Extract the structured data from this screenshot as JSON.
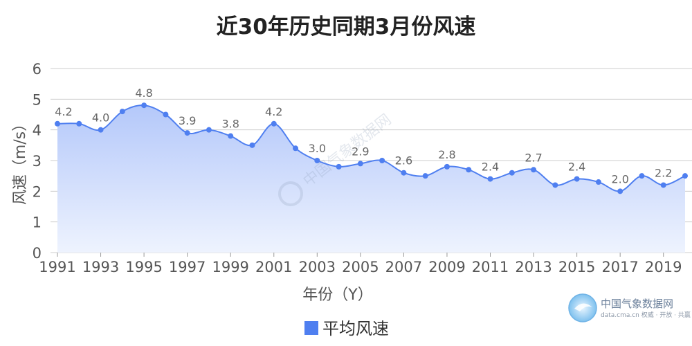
{
  "chart_data": {
    "type": "area",
    "title": "近30年历史同期3月份风速",
    "xlabel": "年份（Y）",
    "ylabel": "风速（m/s）",
    "ylim": [
      0,
      6
    ],
    "yticks": [
      0,
      1,
      2,
      3,
      4,
      5,
      6
    ],
    "xtick_labels": [
      "1991",
      "1993",
      "1995",
      "1997",
      "1999",
      "2001",
      "2003",
      "2005",
      "2007",
      "2009",
      "2011",
      "2013",
      "2015",
      "2017",
      "2019"
    ],
    "x": [
      1991,
      1992,
      1993,
      1994,
      1995,
      1996,
      1997,
      1998,
      1999,
      2000,
      2001,
      2002,
      2003,
      2004,
      2005,
      2006,
      2007,
      2008,
      2009,
      2010,
      2011,
      2012,
      2013,
      2014,
      2015,
      2016,
      2017,
      2018,
      2019,
      2020
    ],
    "series": [
      {
        "name": "平均风速",
        "color": "#4f7ff0",
        "values": [
          4.2,
          4.2,
          4.0,
          4.6,
          4.8,
          4.5,
          3.9,
          4.0,
          3.8,
          3.5,
          4.2,
          3.4,
          3.0,
          2.8,
          2.9,
          3.0,
          2.6,
          2.5,
          2.8,
          2.7,
          2.4,
          2.6,
          2.7,
          2.2,
          2.4,
          2.3,
          2.0,
          2.5,
          2.2,
          2.5
        ]
      }
    ],
    "data_labels": [
      {
        "x": 1991,
        "text": "4.2"
      },
      {
        "x": 1993,
        "text": "4.0"
      },
      {
        "x": 1995,
        "text": "4.8"
      },
      {
        "x": 1997,
        "text": "3.9"
      },
      {
        "x": 1999,
        "text": "3.8"
      },
      {
        "x": 2001,
        "text": "4.2"
      },
      {
        "x": 2003,
        "text": "3.0"
      },
      {
        "x": 2005,
        "text": "2.9"
      },
      {
        "x": 2007,
        "text": "2.6"
      },
      {
        "x": 2009,
        "text": "2.8"
      },
      {
        "x": 2011,
        "text": "2.4"
      },
      {
        "x": 2013,
        "text": "2.7"
      },
      {
        "x": 2015,
        "text": "2.4"
      },
      {
        "x": 2017,
        "text": "2.0"
      },
      {
        "x": 2019,
        "text": "2.2"
      }
    ],
    "grid": true,
    "legend": {
      "position": "bottom-center",
      "label": "平均风速"
    }
  },
  "watermark": {
    "center_text": "中国气象数据网",
    "logo_text": "中国气象数据网",
    "logo_subtext": "data.cma.cn 权威 · 开放 · 共赢"
  },
  "colors": {
    "line": "#4f7ff0",
    "area_top": "#b4c8fa",
    "area_bottom": "#eef3fe",
    "grid": "#cccccc"
  }
}
